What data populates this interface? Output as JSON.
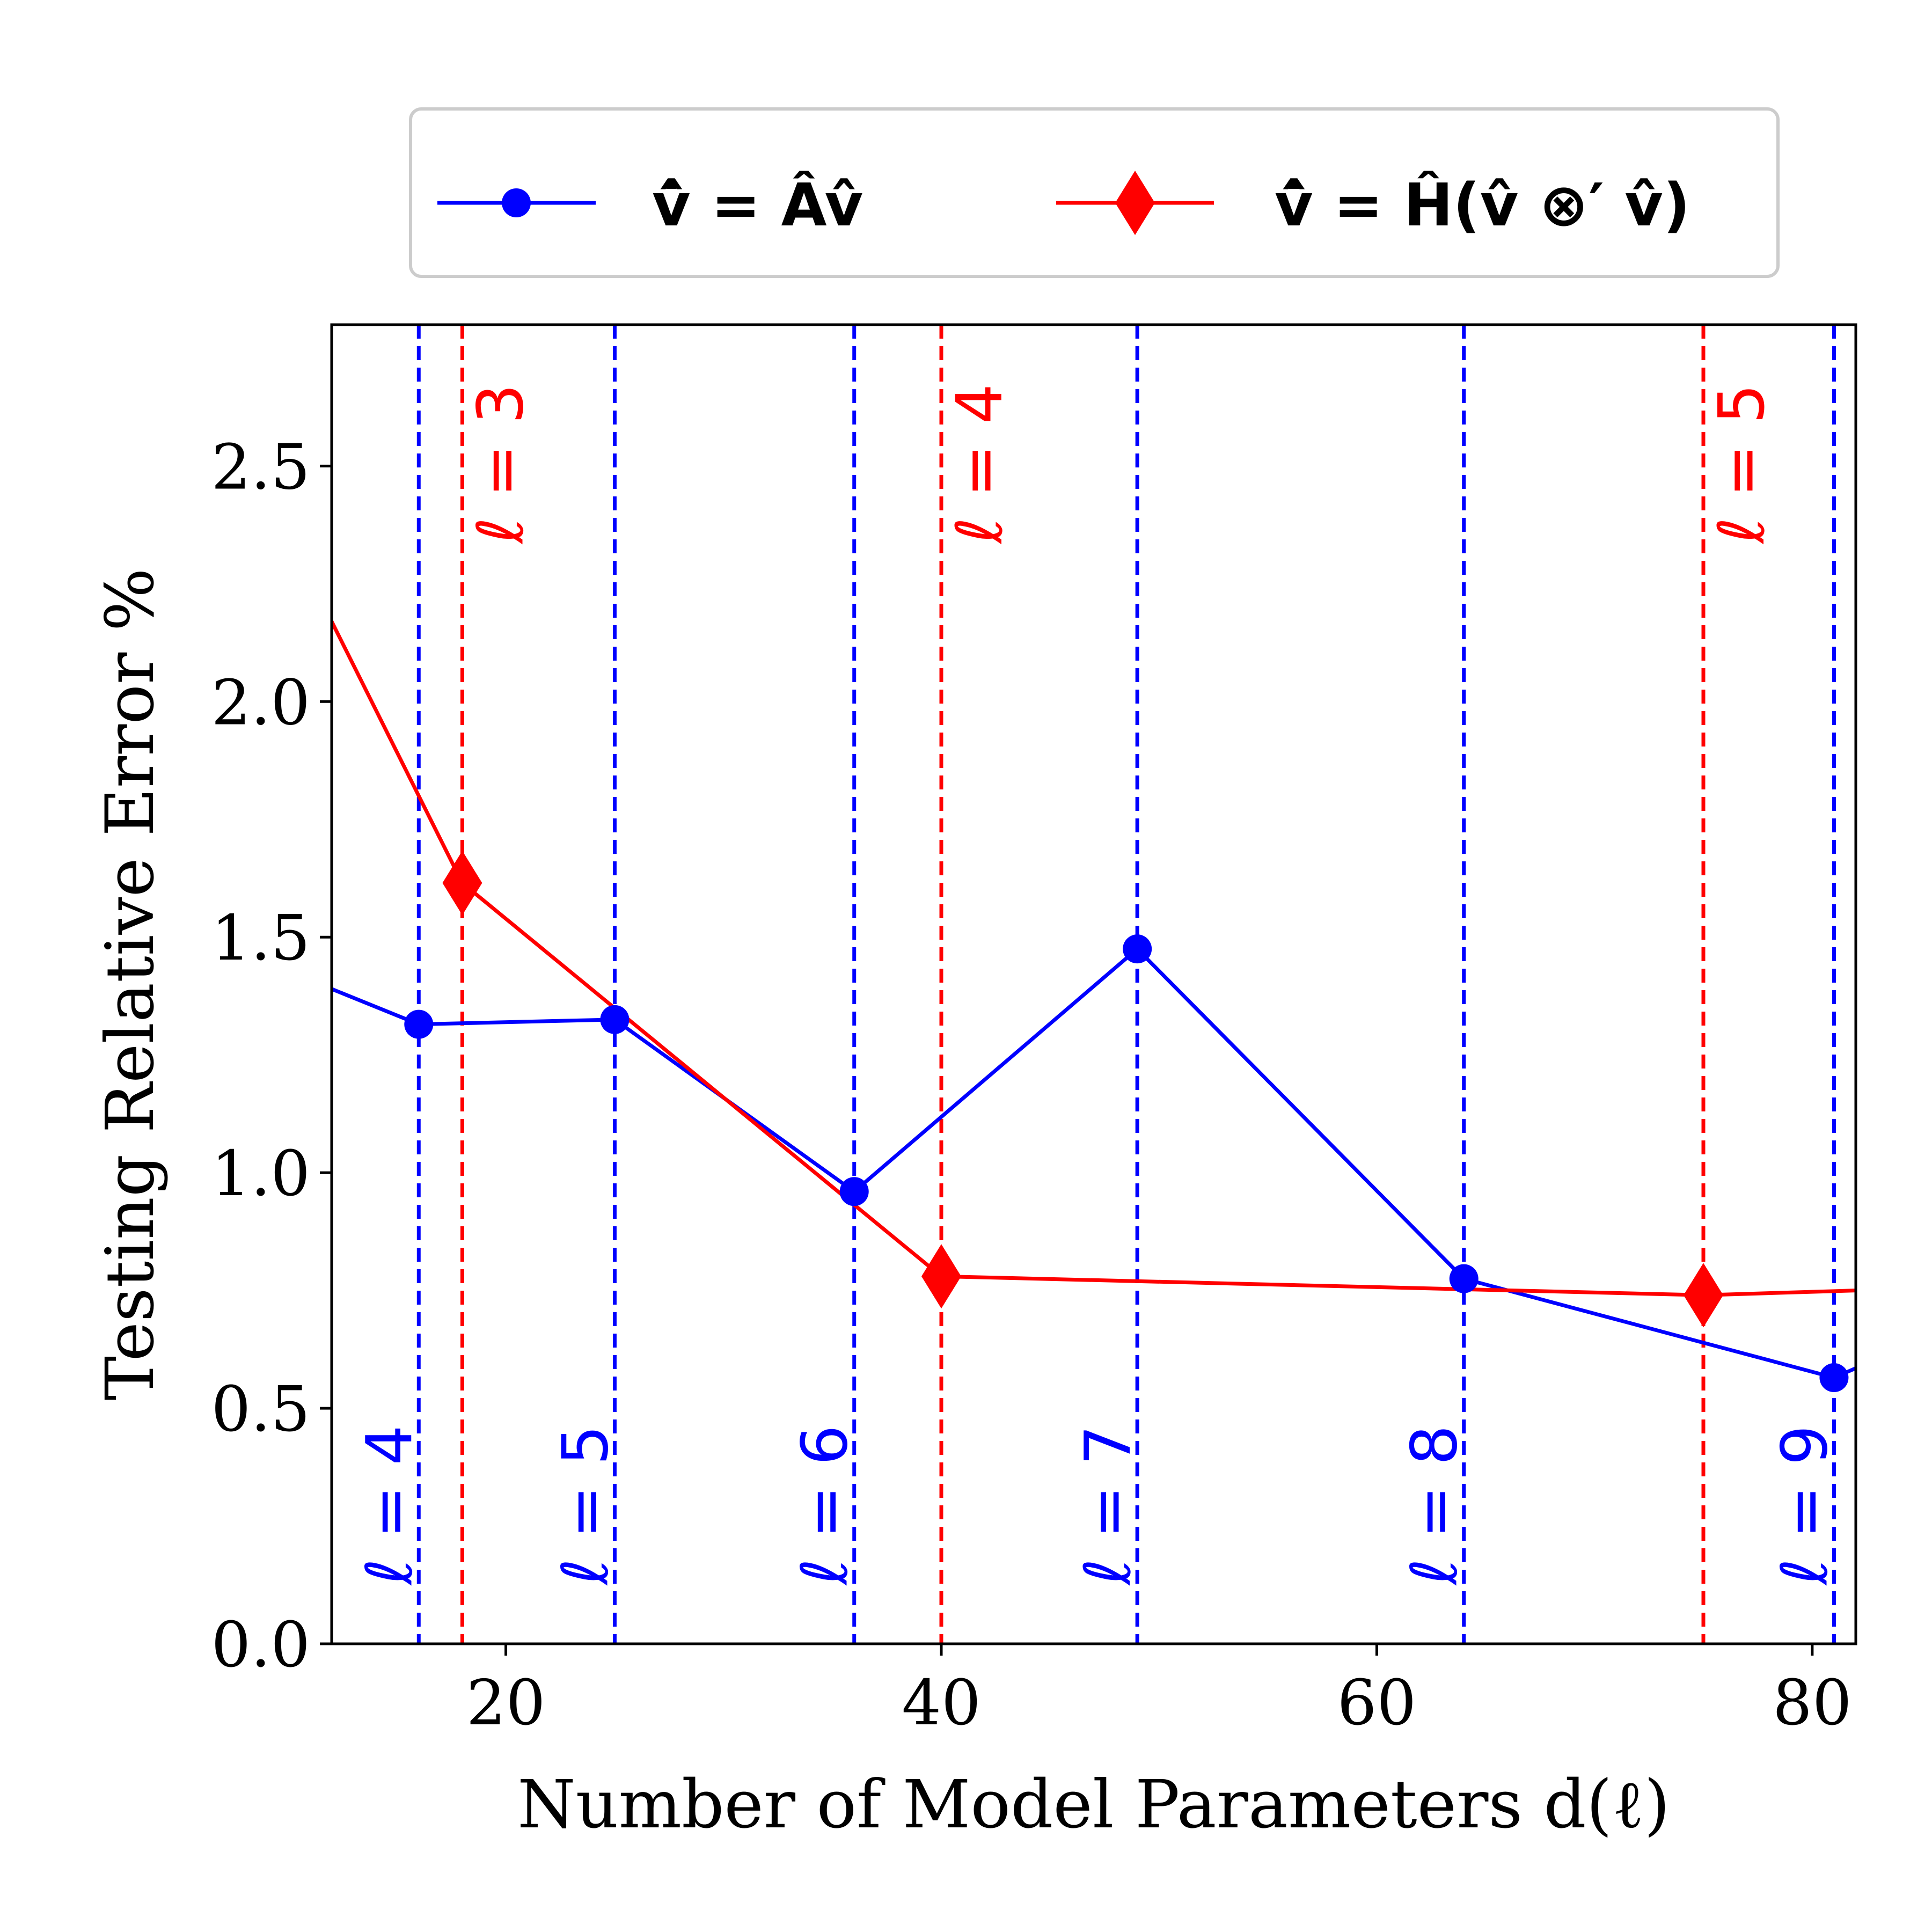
{
  "chart_data": {
    "type": "line",
    "xlabel": "Number of Model Parameters d(ℓ)",
    "ylabel": "Testing Relative Error %",
    "xlim": [
      12,
      82
    ],
    "ylim": [
      0,
      2.8
    ],
    "xticks": [
      20,
      40,
      60,
      80
    ],
    "xtick_labels": [
      "20",
      "40",
      "60",
      "80"
    ],
    "yticks": [
      0,
      0.5,
      1.0,
      1.5,
      2.0,
      2.5
    ],
    "ytick_labels": [
      "0.0",
      "0.5",
      "1.0",
      "1.5",
      "2.0",
      "2.5"
    ],
    "grid": false,
    "legend_position": "top",
    "series": [
      {
        "name": "v̂̇ = Âv̂",
        "color": "#0000ff",
        "marker": "circle",
        "x": [
          12,
          16,
          25,
          36,
          49,
          64,
          81,
          82
        ],
        "y": [
          1.39,
          1.315,
          1.325,
          0.96,
          1.475,
          0.775,
          0.565,
          0.585
        ],
        "marker_x": [
          16,
          25,
          36,
          49,
          64,
          81
        ]
      },
      {
        "name": "v̂̇ = Ĥ(v̂ ⊗′ v̂)",
        "color": "#ff0000",
        "marker": "diamond",
        "x": [
          12,
          18,
          40,
          75,
          82
        ],
        "y": [
          2.17,
          1.615,
          0.78,
          0.74,
          0.75
        ],
        "marker_x": [
          18,
          40,
          75
        ]
      }
    ],
    "vlines": [
      {
        "x": 16,
        "color": "#0000ff",
        "label": "ℓ = 4",
        "label_pos": "bottom"
      },
      {
        "x": 25,
        "color": "#0000ff",
        "label": "ℓ = 5",
        "label_pos": "bottom"
      },
      {
        "x": 36,
        "color": "#0000ff",
        "label": "ℓ = 6",
        "label_pos": "bottom"
      },
      {
        "x": 49,
        "color": "#0000ff",
        "label": "ℓ = 7",
        "label_pos": "bottom"
      },
      {
        "x": 64,
        "color": "#0000ff",
        "label": "ℓ = 8",
        "label_pos": "bottom"
      },
      {
        "x": 81,
        "color": "#0000ff",
        "label": "ℓ = 9",
        "label_pos": "bottom"
      },
      {
        "x": 18,
        "color": "#ff0000",
        "label": "ℓ = 3",
        "label_pos": "top"
      },
      {
        "x": 40,
        "color": "#ff0000",
        "label": "ℓ = 4",
        "label_pos": "top"
      },
      {
        "x": 75,
        "color": "#ff0000",
        "label": "ℓ = 5",
        "label_pos": "top"
      }
    ]
  }
}
